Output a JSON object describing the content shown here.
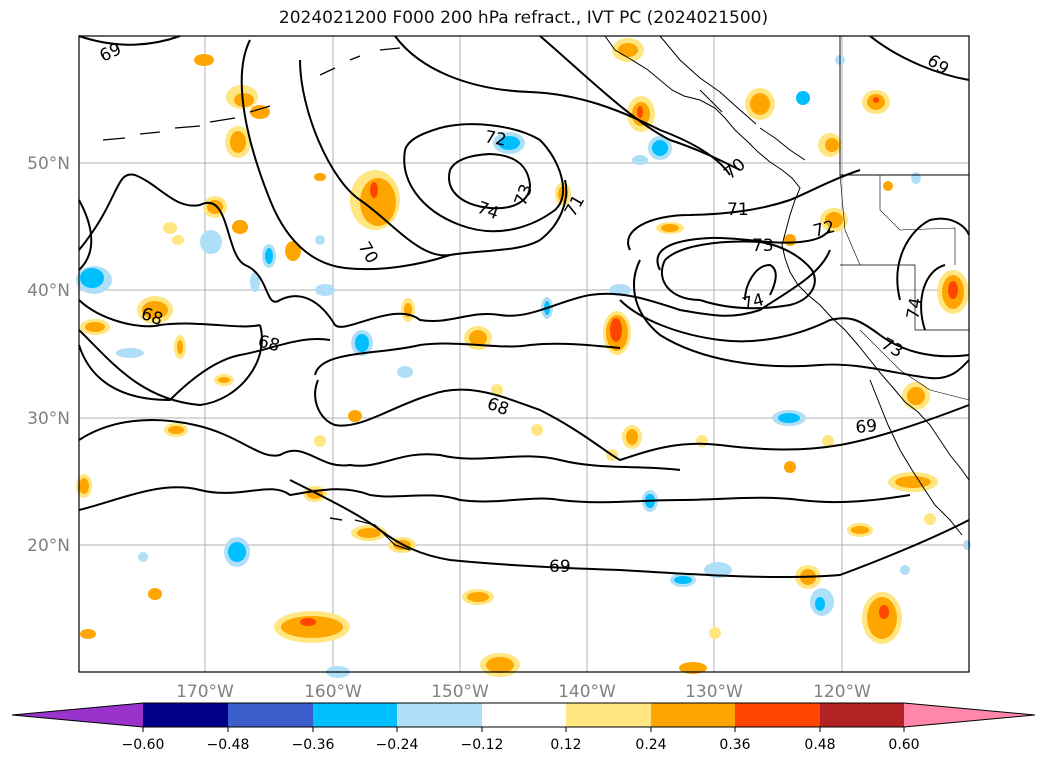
{
  "title": "2024021200 F000 200 hPa refract., IVT PC (2024021500)",
  "map": {
    "lat_labels": [
      "50°N",
      "40°N",
      "30°N",
      "20°N"
    ],
    "lon_labels": [
      "170°W",
      "160°W",
      "150°W",
      "140°W",
      "130°W",
      "120°W"
    ],
    "contour_labels": [
      "69",
      "69",
      "72",
      "70",
      "74",
      "73",
      "71",
      "71",
      "73",
      "72",
      "70",
      "68",
      "68",
      "74",
      "74",
      "73",
      "68",
      "69",
      "69"
    ]
  },
  "colorbar": {
    "ticks": [
      "−0.60",
      "−0.48",
      "−0.36",
      "−0.24",
      "−0.12",
      "0.12",
      "0.24",
      "0.36",
      "0.48",
      "0.60"
    ],
    "colors": [
      "#9933cc",
      "#00008b",
      "#3a5fcd",
      "#00bfff",
      "#aedff7",
      "#ffffff",
      "#ffe680",
      "#ffa500",
      "#ff4500",
      "#b22222",
      "#ff88aa"
    ]
  }
}
